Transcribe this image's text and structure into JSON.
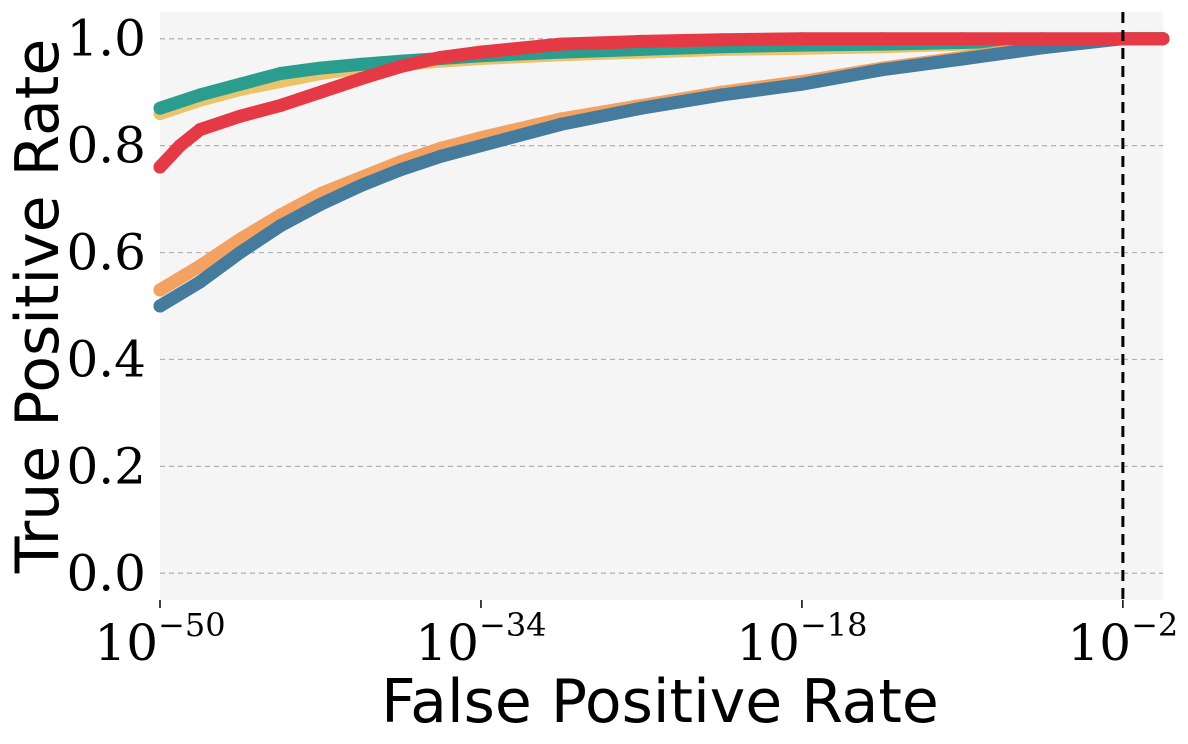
{
  "chart_data": {
    "type": "line",
    "title": "",
    "xlabel": "False Positive Rate",
    "ylabel": "True Positive Rate",
    "xscale": "log",
    "xlim": [
      1e-50,
      1
    ],
    "ylim": [
      -0.05,
      1.05
    ],
    "grid": "horizontal dashed",
    "legend": "none",
    "x_ticks": [
      {
        "base": "10",
        "exp": "−50",
        "value": 1e-50
      },
      {
        "base": "10",
        "exp": "−34",
        "value": 1e-34
      },
      {
        "base": "10",
        "exp": "−18",
        "value": 1e-18
      },
      {
        "base": "10",
        "exp": "−2",
        "value": 0.01
      }
    ],
    "y_ticks": [
      {
        "label": "0.0",
        "value": 0.0
      },
      {
        "label": "0.2",
        "value": 0.2
      },
      {
        "label": "0.4",
        "value": 0.4
      },
      {
        "label": "0.6",
        "value": 0.6
      },
      {
        "label": "0.8",
        "value": 0.8
      },
      {
        "label": "1.0",
        "value": 1.0
      }
    ],
    "reference_line": {
      "x": 0.01,
      "style": "dashed",
      "color": "#000000"
    },
    "background_color": "#f5f5f5",
    "series": [
      {
        "color": "#e9c46a",
        "x": [
          1e-50,
          1e-48,
          1e-46,
          1e-44,
          1e-42,
          1e-40,
          1e-38,
          1e-36,
          1e-34,
          1e-30,
          1e-26,
          1e-22,
          1e-18,
          1e-14,
          1e-10,
          1e-06,
          0.01,
          1
        ],
        "y": [
          0.86,
          0.885,
          0.905,
          0.92,
          0.935,
          0.945,
          0.952,
          0.958,
          0.963,
          0.97,
          0.975,
          0.98,
          0.982,
          0.985,
          0.99,
          0.995,
          1.0,
          1.0
        ]
      },
      {
        "color": "#2a9d8f",
        "x": [
          1e-50,
          1e-48,
          1e-46,
          1e-44,
          1e-42,
          1e-40,
          1e-38,
          1e-36,
          1e-34,
          1e-30,
          1e-26,
          1e-22,
          1e-18,
          1e-14,
          1e-10,
          1e-06,
          0.01,
          1
        ],
        "y": [
          0.87,
          0.895,
          0.915,
          0.935,
          0.945,
          0.952,
          0.958,
          0.963,
          0.968,
          0.975,
          0.98,
          0.985,
          0.988,
          0.99,
          0.993,
          0.997,
          1.0,
          1.0
        ]
      },
      {
        "color": "#f4a261",
        "x": [
          1e-50,
          1e-48,
          1e-46,
          1e-44,
          1e-42,
          1e-40,
          1e-38,
          1e-36,
          1e-34,
          1e-30,
          1e-26,
          1e-22,
          1e-18,
          1e-14,
          1e-10,
          1e-06,
          0.01,
          1
        ],
        "y": [
          0.53,
          0.575,
          0.625,
          0.67,
          0.71,
          0.74,
          0.77,
          0.795,
          0.815,
          0.85,
          0.875,
          0.9,
          0.92,
          0.945,
          0.965,
          0.985,
          1.0,
          1.0
        ]
      },
      {
        "color": "#457b9d",
        "x": [
          1e-50,
          1e-48,
          1e-46,
          1e-44,
          1e-42,
          1e-40,
          1e-38,
          1e-36,
          1e-34,
          1e-30,
          1e-26,
          1e-22,
          1e-18,
          1e-14,
          1e-10,
          1e-06,
          0.01,
          1
        ],
        "y": [
          0.5,
          0.545,
          0.6,
          0.65,
          0.69,
          0.725,
          0.755,
          0.78,
          0.8,
          0.84,
          0.87,
          0.895,
          0.915,
          0.942,
          0.962,
          0.983,
          1.0,
          1.0
        ]
      },
      {
        "color": "#e63946",
        "x": [
          1e-50,
          1e-49,
          1e-48,
          1e-46,
          1e-44,
          1e-42,
          1e-40,
          1e-38,
          1e-36,
          1e-34,
          1e-30,
          1e-26,
          1e-22,
          1e-18,
          1e-14,
          1e-10,
          1e-06,
          0.01,
          1
        ],
        "y": [
          0.76,
          0.8,
          0.83,
          0.855,
          0.875,
          0.9,
          0.925,
          0.948,
          0.965,
          0.975,
          0.99,
          0.995,
          0.998,
          1.0,
          1.0,
          1.0,
          1.0,
          1.0,
          1.0
        ]
      }
    ]
  }
}
